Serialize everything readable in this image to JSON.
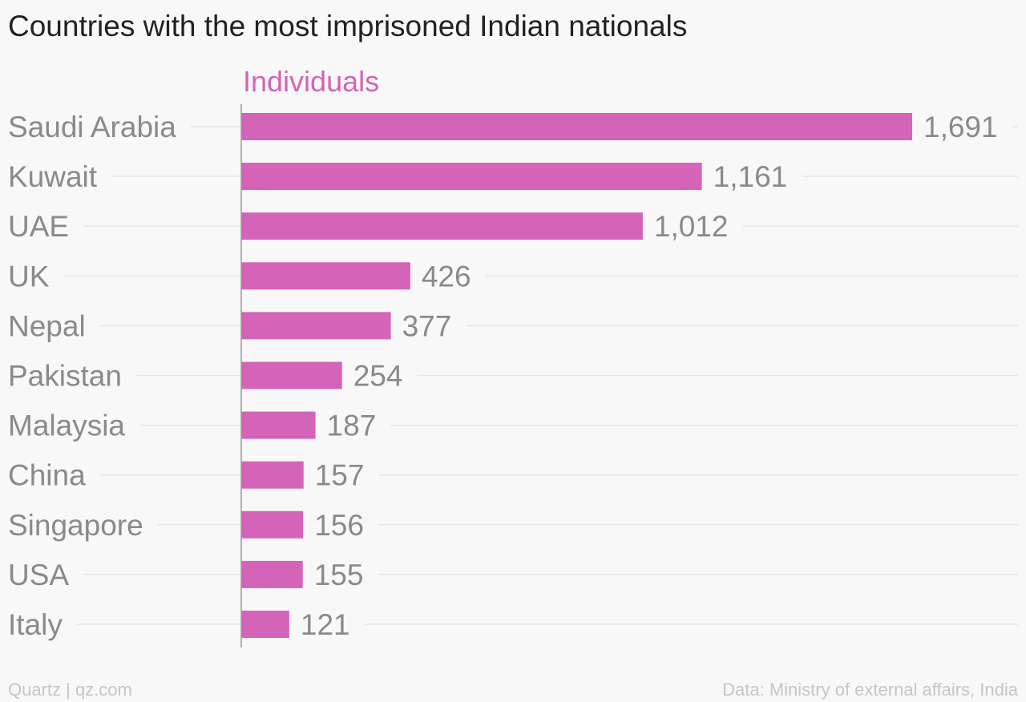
{
  "chart_data": {
    "type": "bar",
    "orientation": "horizontal",
    "title": "Countries with the most imprisoned Indian nationals",
    "series": [
      {
        "name": "Individuals",
        "values": [
          1691,
          1161,
          1012,
          426,
          377,
          254,
          187,
          157,
          156,
          155,
          121
        ]
      }
    ],
    "categories": [
      "Saudi Arabia",
      "Kuwait",
      "UAE",
      "UK",
      "Nepal",
      "Pakistan",
      "Malaysia",
      "China",
      "Singapore",
      "USA",
      "Italy"
    ],
    "value_labels": [
      "1,691",
      "1,161",
      "1,012",
      "426",
      "377",
      "254",
      "187",
      "157",
      "156",
      "155",
      "121"
    ],
    "xlim": [
      0,
      2000
    ],
    "grid": true,
    "legend": "top-left",
    "colors": {
      "bar": "#d364b8",
      "series_label": "#d364b8",
      "label": "#8a8a8a",
      "grid": "#e6e6e6",
      "axis": "#999999",
      "title": "#222222",
      "footer": "#c6c6c6"
    }
  },
  "footer": {
    "credit": "Quartz | qz.com",
    "source": "Data: Ministry of external affairs, India"
  }
}
